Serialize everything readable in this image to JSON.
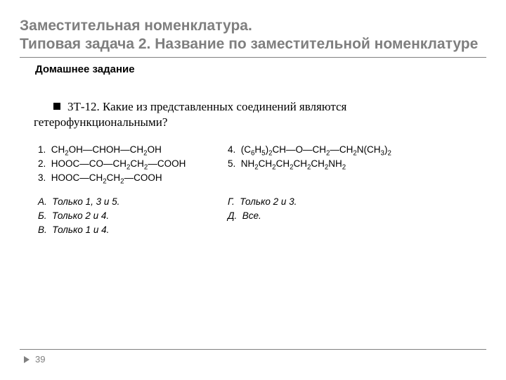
{
  "title": {
    "line1": "Заместительная номенклатура.",
    "line2": "Типовая задача 2. Название по заместительной номенклатуре",
    "color": "#7f7f7f"
  },
  "subheading": "Домашнее задание",
  "question": {
    "code": "3Т-12.",
    "text_rest": "Какие из представленных соединений являются гетерофункциональными?"
  },
  "compounds": {
    "c1": "CH₂OH—CHOH—CH₂OH",
    "c2": "HOOC—CO—CH₂CH₂—COOH",
    "c3": "HOOC—CH₂CH₂—COOH",
    "c4": "(C₆H₅)₂CH—O—CH₂—CH₂N(CH₃)₂",
    "c5": "NH₂CH₂CH₂CH₂CH₂NH₂"
  },
  "answers": {
    "a": "Только 1, 3 и 5.",
    "b": "Только 2 и 4.",
    "v": "Только 1 и 4.",
    "g": "Только 2 и 3.",
    "d": "Все."
  },
  "page_number": "39",
  "colors": {
    "rule": "#808080",
    "bg": "#ffffff"
  }
}
